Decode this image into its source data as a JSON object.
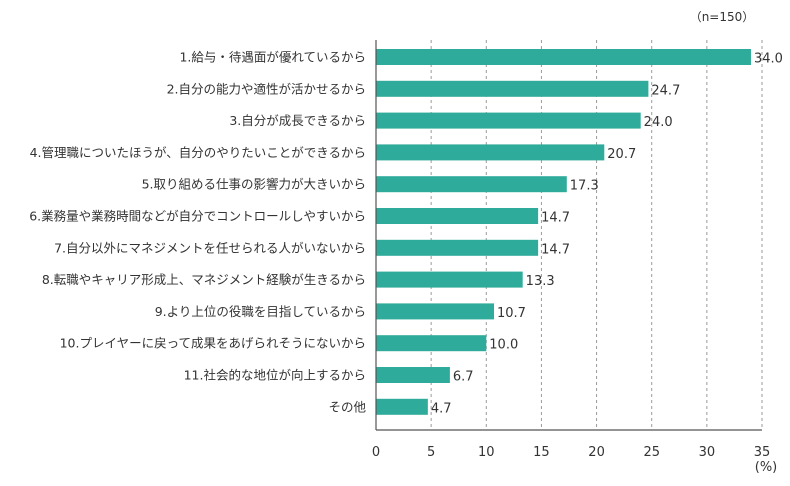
{
  "chart_data": {
    "type": "bar",
    "orientation": "horizontal",
    "sample_note": "（n=150）",
    "unit_label": "(%)",
    "categories": [
      "1.給与・待遇面が優れているから",
      "2.自分の能力や適性が活かせるから",
      "3.自分が成長できるから",
      "4.管理職についたほうが、自分のやりたいことができるから",
      "5.取り組める仕事の影響力が大きいから",
      "6.業務量や業務時間などが自分でコントロールしやすいから",
      "7.自分以外にマネジメントを任せられる人がいないから",
      "8.転職やキャリア形成上、マネジメント経験が生きるから",
      "9.より上位の役職を目指しているから",
      "10.プレイヤーに戻って成果をあげられそうにないから",
      "11.社会的な地位が向上するから",
      "その他"
    ],
    "values": [
      34.0,
      24.7,
      24.0,
      20.7,
      17.3,
      14.7,
      14.7,
      13.3,
      10.7,
      10.0,
      6.7,
      4.7
    ],
    "value_labels": [
      "34.0",
      "24.7",
      "24.0",
      "20.7",
      "17.3",
      "14.7",
      "14.7",
      "13.3",
      "10.7",
      "10.0",
      "6.7",
      "4.7"
    ],
    "xlim": [
      0,
      35
    ],
    "xticks": [
      0,
      5,
      10,
      15,
      20,
      25,
      30,
      35
    ],
    "grid": "vertical dashed",
    "legend": "none"
  },
  "colors": {
    "bar": "#2eab9a",
    "axis": "#555555",
    "grid": "#9a9a9a",
    "text": "#333333"
  }
}
